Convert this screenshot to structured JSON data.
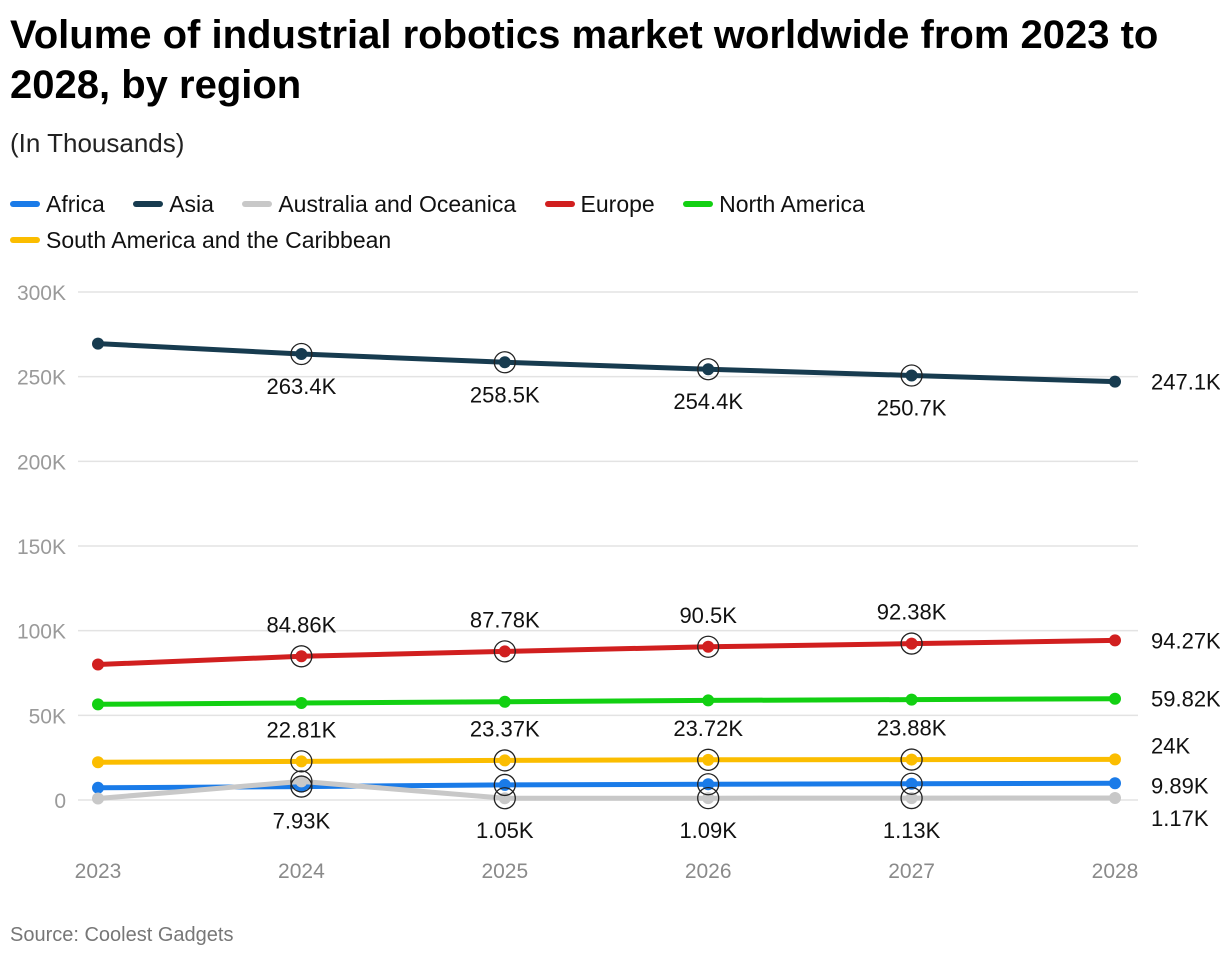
{
  "chart_data": {
    "type": "line",
    "title": "Volume of industrial robotics market worldwide from 2023 to 2028, by region",
    "subtitle": "(In Thousands)",
    "source": "Source: Coolest Gadgets",
    "x": [
      "2023",
      "2024",
      "2025",
      "2026",
      "2027",
      "2028"
    ],
    "ylim": [
      0,
      300000
    ],
    "yticks": [
      {
        "value": 0,
        "label": "0"
      },
      {
        "value": 50000,
        "label": "50K"
      },
      {
        "value": 100000,
        "label": "100K"
      },
      {
        "value": 150000,
        "label": "150K"
      },
      {
        "value": 200000,
        "label": "200K"
      },
      {
        "value": 250000,
        "label": "250K"
      },
      {
        "value": 300000,
        "label": "300K"
      }
    ],
    "grid": true,
    "legend_position": "top",
    "series": [
      {
        "key": "africa",
        "name": "Africa",
        "color": "#1a7be8",
        "values": [
          7200,
          7930,
          8900,
          9300,
          9600,
          9890
        ],
        "labels": [
          "",
          "7.93K",
          "",
          "",
          "",
          "9.89K"
        ],
        "label_pos": "below"
      },
      {
        "key": "asia",
        "name": "Asia",
        "color": "#173b4f",
        "values": [
          269500,
          263400,
          258500,
          254400,
          250700,
          247100
        ],
        "labels": [
          "",
          "263.4K",
          "258.5K",
          "254.4K",
          "250.7K",
          "247.1K"
        ],
        "label_pos": "below"
      },
      {
        "key": "australia",
        "name": "Australia and Oceanica",
        "color": "#c8c8c8",
        "values": [
          900,
          11000,
          1050,
          1090,
          1130,
          1170
        ],
        "labels": [
          "",
          "",
          "1.05K",
          "1.09K",
          "1.13K",
          "1.17K"
        ],
        "label_pos": "below"
      },
      {
        "key": "europe",
        "name": "Europe",
        "color": "#d11f1f",
        "values": [
          80000,
          84860,
          87780,
          90500,
          92380,
          94270
        ],
        "labels": [
          "",
          "84.86K",
          "87.78K",
          "90.5K",
          "92.38K",
          "94.27K"
        ],
        "label_pos": "above"
      },
      {
        "key": "north_america",
        "name": "North America",
        "color": "#12d012",
        "values": [
          56500,
          57300,
          58000,
          58800,
          59300,
          59820
        ],
        "labels": [
          "",
          "",
          "",
          "",
          "",
          "59.82K"
        ],
        "label_pos": "above"
      },
      {
        "key": "south_america",
        "name": "South America and the Caribbean",
        "color": "#fbbd00",
        "values": [
          22300,
          22810,
          23370,
          23720,
          23880,
          24000
        ],
        "labels": [
          "",
          "22.81K",
          "23.37K",
          "23.72K",
          "23.88K",
          "24K"
        ],
        "label_pos": "above"
      }
    ],
    "highlighted_points": [
      1,
      2,
      3,
      4
    ]
  }
}
